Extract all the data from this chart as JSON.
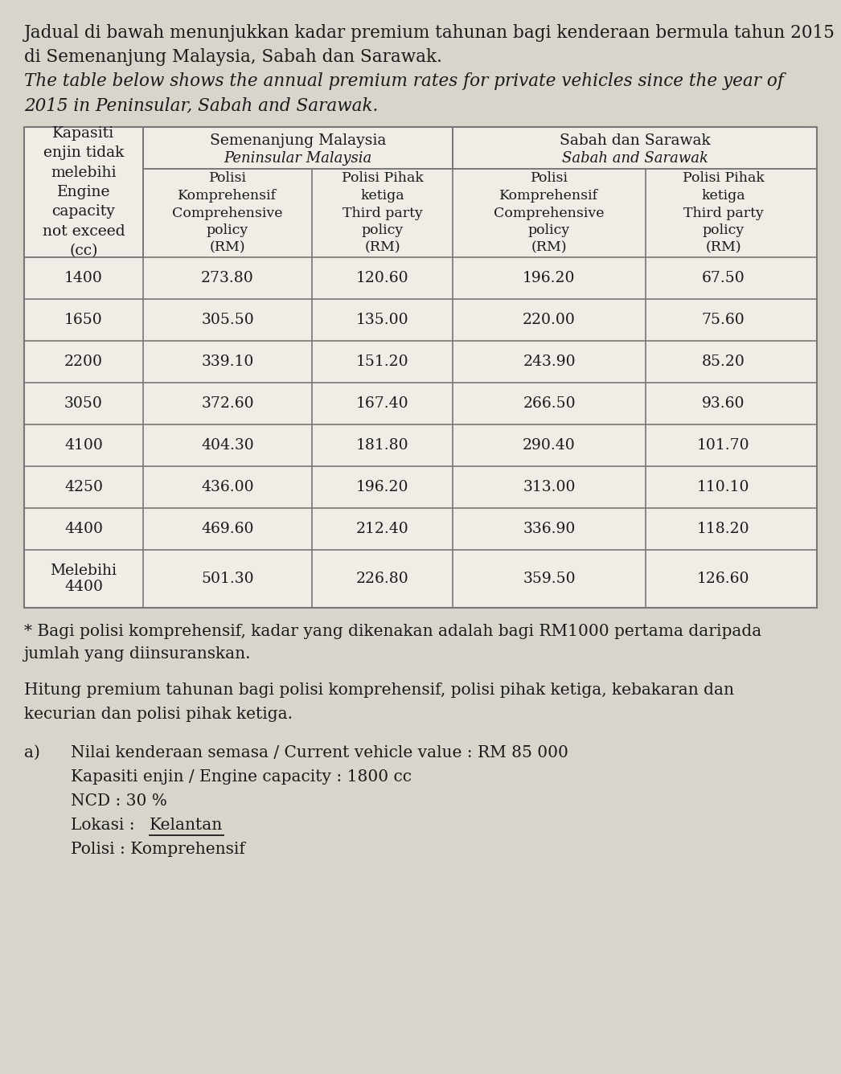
{
  "intro_text_line1": "Jadual di bawah menunjukkan kadar premium tahunan bagi kenderaan bermula tahun 2015",
  "intro_text_line2": "di Semenanjung Malaysia, Sabah dan Sarawak.",
  "intro_text_line3": "The table below shows the annual premium rates for private vehicles since the year of",
  "intro_text_line4": "2015 in Peninsular, Sabah and Sarawak.",
  "table_data": [
    [
      "1400",
      "273.80",
      "120.60",
      "196.20",
      "67.50"
    ],
    [
      "1650",
      "305.50",
      "135.00",
      "220.00",
      "75.60"
    ],
    [
      "2200",
      "339.10",
      "151.20",
      "243.90",
      "85.20"
    ],
    [
      "3050",
      "372.60",
      "167.40",
      "266.50",
      "93.60"
    ],
    [
      "4100",
      "404.30",
      "181.80",
      "290.40",
      "101.70"
    ],
    [
      "4250",
      "436.00",
      "196.20",
      "313.00",
      "110.10"
    ],
    [
      "4400",
      "469.60",
      "212.40",
      "336.90",
      "118.20"
    ],
    [
      "Melebihi\n4400",
      "501.30",
      "226.80",
      "359.50",
      "126.60"
    ]
  ],
  "footnote": "* Bagi polisi komprehensif, kadar yang dikenakan adalah bagi RM1000 pertama daripada",
  "footnote2": "jumlah yang diinsuranskan.",
  "instruction_line1": "Hitung premium tahunan bagi polisi komprehensif, polisi pihak ketiga, kebakaran dan",
  "instruction_line2": "kecurian dan polisi pihak ketiga.",
  "part_a_label": "a)",
  "part_a_line1": "Nilai kenderaan semasa / Current vehicle value : RM 85 000",
  "part_a_line2": "Kapasiti enjin / Engine capacity : 1800 cc",
  "part_a_line3": "NCD : 30 %",
  "part_a_line5": "Polisi : Komprehensif",
  "bg_color": "#d8d5cc",
  "table_bg": "#f0ede6",
  "text_color": "#1a1a1a",
  "border_color": "#777777"
}
